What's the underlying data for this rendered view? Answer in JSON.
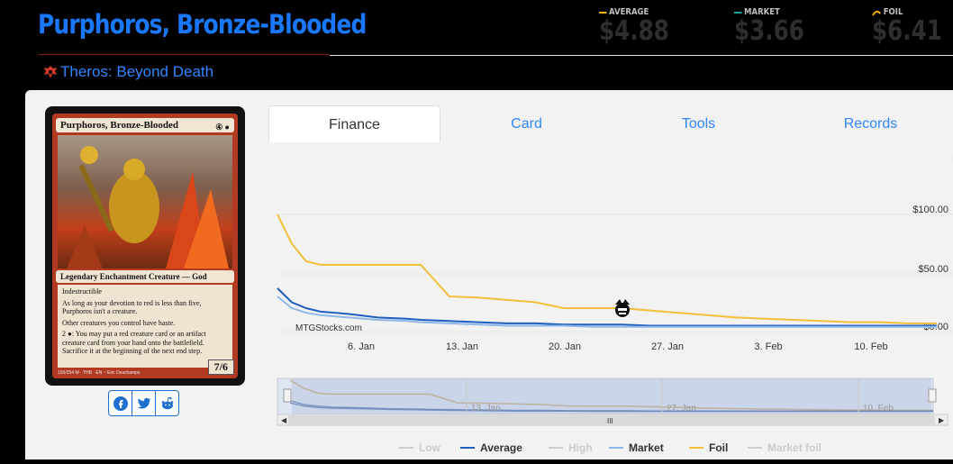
{
  "header": {
    "title": "Purphoros, Bronze-Blooded",
    "set_name": "Theros: Beyond Death",
    "stats": [
      {
        "label": "AVERAGE",
        "value": "$4.88",
        "color": "#f2b300"
      },
      {
        "label": "MARKET",
        "value": "$3.66",
        "color": "#1aa3a3"
      },
      {
        "label": "FOIL",
        "value": "$6.41",
        "color": "#f2b300"
      }
    ]
  },
  "card": {
    "name": "Purphoros, Bronze-Blooded",
    "type_line": "Legendary Enchantment Creature — God",
    "rules": [
      "Indestructible",
      "As long as your devotion to red is less than five, Purphoros isn't a creature.",
      "Other creatures you control have haste.",
      "2 ●: You may put a red creature card or an artifact creature card from your hand onto the battlefield. Sacrifice it at the beginning of the next end step."
    ],
    "pt": "7/6",
    "footer": "150/254 M · THB · EN ~ Eric Deschamps"
  },
  "share": {
    "facebook": "facebook-icon",
    "twitter": "twitter-icon",
    "reddit": "reddit-icon"
  },
  "tabs": [
    {
      "label": "Finance",
      "active": true
    },
    {
      "label": "Card",
      "active": false
    },
    {
      "label": "Tools",
      "active": false
    },
    {
      "label": "Records",
      "active": false
    }
  ],
  "chart_data": {
    "type": "line",
    "watermark": "MTGStocks.com",
    "y_ticks": [
      "$100.00",
      "$50.00",
      "$0.00"
    ],
    "x_ticks": [
      "6. Jan",
      "13. Jan",
      "20. Jan",
      "27. Jan",
      "3. Feb",
      "10. Feb"
    ],
    "navigator_ticks": [
      "13. Jan",
      "27. Jan",
      "10. Feb"
    ],
    "ylim": [
      0,
      100
    ],
    "x": [
      0,
      1,
      2,
      3,
      5,
      7,
      9,
      10,
      12,
      14,
      16,
      18,
      20,
      22,
      24,
      26,
      28,
      30,
      32,
      34,
      36,
      38,
      40,
      42,
      44,
      46
    ],
    "series": [
      {
        "name": "Foil",
        "color": "#f2bf3a",
        "values": [
          100,
          75,
          60,
          57,
          57,
          57,
          57,
          57,
          30,
          29,
          27,
          25,
          20,
          20,
          20,
          18,
          16,
          14,
          12,
          11,
          10,
          9,
          8,
          8,
          7,
          7
        ]
      },
      {
        "name": "Average",
        "color": "#1f5fbf",
        "values": [
          37,
          25,
          20,
          17,
          15,
          12,
          11,
          10,
          9,
          8,
          7,
          7,
          6,
          6,
          6,
          5,
          5,
          5,
          5,
          5,
          5,
          5,
          5,
          5,
          5,
          5
        ]
      },
      {
        "name": "Market",
        "color": "#8fb8e8",
        "values": [
          30,
          20,
          16,
          14,
          12,
          10,
          9,
          8,
          7,
          6,
          5,
          5,
          5,
          4,
          4,
          4,
          4,
          4,
          4,
          4,
          4,
          4,
          4,
          4,
          4,
          4
        ]
      }
    ],
    "legend": [
      {
        "name": "Low",
        "color": "#cccccc",
        "active": false
      },
      {
        "name": "Average",
        "color": "#1f5fbf",
        "active": true
      },
      {
        "name": "High",
        "color": "#cccccc",
        "active": false
      },
      {
        "name": "Market",
        "color": "#8fb8e8",
        "active": true
      },
      {
        "name": "Foil",
        "color": "#f2bf3a",
        "active": true
      },
      {
        "name": "Market foil",
        "color": "#cccccc",
        "active": false
      }
    ]
  }
}
